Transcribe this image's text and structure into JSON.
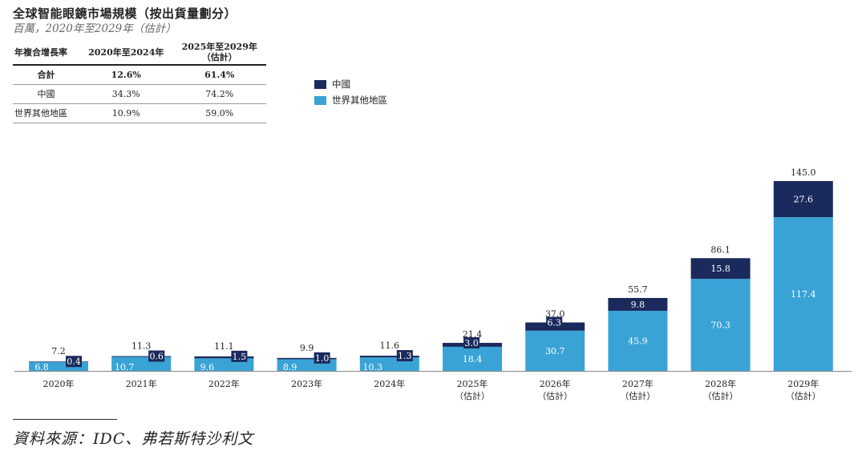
{
  "title": "全球智能眼鏡市場規模（按出貨量劃分）",
  "subtitle": "百萬，2020年至2029年（估計）",
  "cagr_table": {
    "headers": [
      "年複合增長率",
      "2020年至2024年",
      "2025年至2029年\n（估計）"
    ],
    "rows": [
      {
        "label": "合計",
        "v1": "12.6%",
        "v2": "61.4%"
      },
      {
        "label": "中國",
        "v1": "34.3%",
        "v2": "74.2%"
      },
      {
        "label": "世界其他地區",
        "v1": "10.9%",
        "v2": "59.0%"
      }
    ]
  },
  "legend": [
    {
      "name": "中國",
      "color": "#1b2a5c"
    },
    {
      "name": "世界其他地區",
      "color": "#3aa3d6"
    }
  ],
  "source": "資料來源：IDC、弗若斯特沙利文",
  "chart_data": {
    "type": "bar",
    "stacked": true,
    "categories": [
      "2020年",
      "2021年",
      "2022年",
      "2023年",
      "2024年",
      "2025年\n（估計）",
      "2026年\n（估計）",
      "2027年\n（估計）",
      "2028年\n（估計）",
      "2029年\n（估計）"
    ],
    "series": [
      {
        "name": "世界其他地區",
        "color": "#3aa3d6",
        "values": [
          6.8,
          10.7,
          9.6,
          8.9,
          10.3,
          18.4,
          30.7,
          45.9,
          70.3,
          117.4
        ]
      },
      {
        "name": "中國",
        "color": "#1b2a5c",
        "values": [
          0.4,
          0.6,
          1.5,
          1.0,
          1.3,
          3.0,
          6.3,
          9.8,
          15.8,
          27.6
        ]
      }
    ],
    "totals": [
      7.2,
      11.3,
      11.1,
      9.9,
      11.6,
      21.4,
      37.0,
      55.7,
      86.1,
      145.0
    ],
    "ylim": [
      0,
      145
    ],
    "grid": false,
    "legend_position": "top-left"
  }
}
